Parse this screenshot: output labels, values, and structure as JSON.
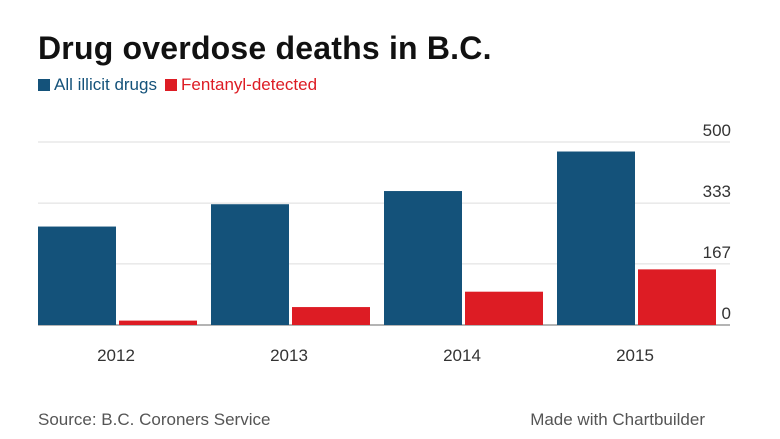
{
  "title": "Drug overdose deaths in B.C.",
  "source": "Source: B.C. Coroners Service",
  "credit": "Made with Chartbuilder",
  "chart_data": {
    "type": "bar",
    "title": "Drug overdose deaths in B.C.",
    "categories": [
      "2012",
      "2013",
      "2014",
      "2015"
    ],
    "series": [
      {
        "name": "All illicit drugs",
        "color": "#14527a",
        "values": [
          269,
          330,
          366,
          474
        ]
      },
      {
        "name": "Fentanyl-detected",
        "color": "#dd1c24",
        "values": [
          12,
          49,
          91,
          152
        ]
      }
    ],
    "yticks": [
      "0",
      "167",
      "333",
      "500"
    ],
    "ylim": [
      0,
      500
    ],
    "grid": true,
    "yaxis_position": "right",
    "legend_position": "top-left"
  }
}
